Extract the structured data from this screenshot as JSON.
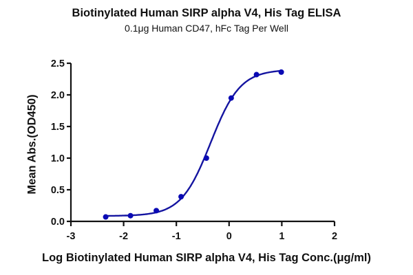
{
  "chart_data": {
    "type": "line",
    "title": "Biotinylated Human SIRP alpha V4, His Tag ELISA",
    "subtitle": "0.1μg Human CD47, hFc Tag Per Well",
    "xlabel": "Log Biotinylated Human SIRP alpha V4, His Tag Conc.(μg/ml)",
    "ylabel": "Mean Abs.(OD450)",
    "xlim": [
      -3,
      2
    ],
    "ylim": [
      0,
      2.5
    ],
    "xticks": [
      "-3",
      "-2",
      "-1",
      "0",
      "1",
      "2"
    ],
    "yticks": [
      "0.0",
      "0.5",
      "1.0",
      "1.5",
      "2.0",
      "2.5"
    ],
    "grid": false,
    "legend": null,
    "series": [
      {
        "name": "Biotinylated Human SIRP alpha V4, His Tag",
        "color": "#1414a0",
        "x": [
          -2.34,
          -1.87,
          -1.38,
          -0.91,
          -0.43,
          0.04,
          0.52,
          0.99
        ],
        "values": [
          0.07,
          0.09,
          0.17,
          0.39,
          1.0,
          1.95,
          2.32,
          2.36
        ],
        "fit": "4-parameter logistic"
      }
    ]
  }
}
